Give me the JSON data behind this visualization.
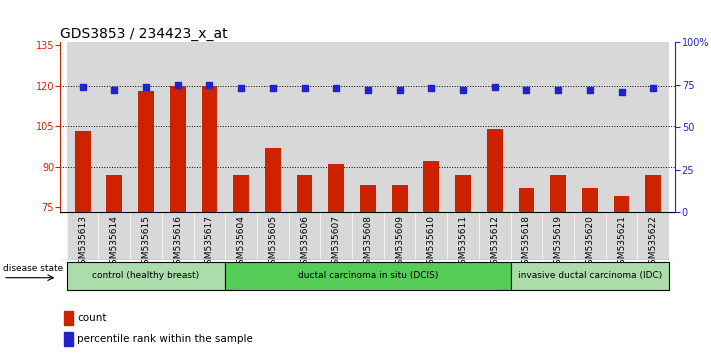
{
  "title": "GDS3853 / 234423_x_at",
  "categories": [
    "GSM535613",
    "GSM535614",
    "GSM535615",
    "GSM535616",
    "GSM535617",
    "GSM535604",
    "GSM535605",
    "GSM535606",
    "GSM535607",
    "GSM535608",
    "GSM535609",
    "GSM535610",
    "GSM535611",
    "GSM535612",
    "GSM535618",
    "GSM535619",
    "GSM535620",
    "GSM535621",
    "GSM535622"
  ],
  "bar_values": [
    103,
    87,
    118,
    120,
    120,
    87,
    97,
    87,
    91,
    83,
    83,
    92,
    87,
    104,
    82,
    87,
    82,
    79,
    87
  ],
  "percentile_values": [
    74,
    72,
    74,
    75,
    75,
    73,
    73,
    73,
    73,
    72,
    72,
    73,
    72,
    74,
    72,
    72,
    72,
    71,
    73
  ],
  "ylim_left": [
    73,
    136
  ],
  "ylim_right": [
    0,
    100
  ],
  "yticks_left": [
    75,
    90,
    105,
    120,
    135
  ],
  "yticks_right": [
    0,
    25,
    50,
    75,
    100
  ],
  "bar_color": "#cc2200",
  "dot_color": "#2222cc",
  "group_labels": [
    "control (healthy breast)",
    "ductal carcinoma in situ (DCIS)",
    "invasive ductal carcinoma (IDC)"
  ],
  "group_ranges": [
    [
      0,
      5
    ],
    [
      5,
      14
    ],
    [
      14,
      19
    ]
  ],
  "group_colors_light": "#aaddaa",
  "group_colors_mid": "#55cc55",
  "bg_color": "#ffffff",
  "col_bg": "#d8d8d8",
  "legend_count_label": "count",
  "legend_pct_label": "percentile rank within the sample",
  "bar_width": 0.5,
  "tick_label_fontsize": 6.5,
  "title_fontsize": 10,
  "dotted_lines": [
    90,
    105,
    120
  ]
}
